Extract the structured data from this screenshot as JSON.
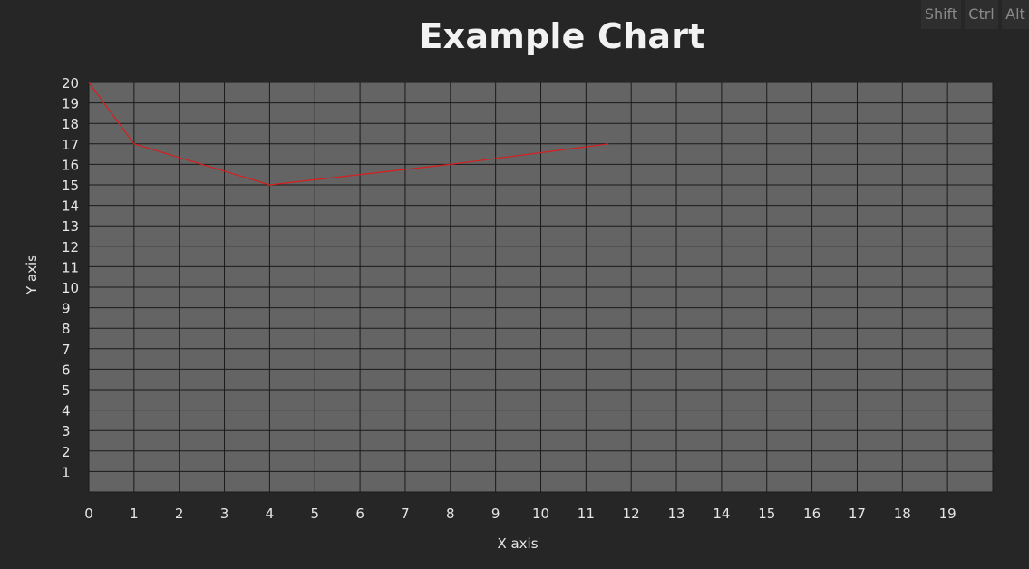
{
  "keys": {
    "shift": "Shift",
    "ctrl": "Ctrl",
    "alt": "Alt"
  },
  "colors": {
    "background": "#262626",
    "plot_background": "#646464",
    "grid": "#1a1a1a",
    "series": "#d81e1e"
  },
  "chart_data": {
    "type": "line",
    "title": "Example Chart",
    "xlabel": "X axis",
    "ylabel": "Y axis",
    "xlim": [
      0,
      20
    ],
    "ylim": [
      0,
      20
    ],
    "x_ticks": [
      0,
      1,
      2,
      3,
      4,
      5,
      6,
      7,
      8,
      9,
      10,
      11,
      12,
      13,
      14,
      15,
      16,
      17,
      18,
      19
    ],
    "y_ticks": [
      1,
      2,
      3,
      4,
      5,
      6,
      7,
      8,
      9,
      10,
      11,
      12,
      13,
      14,
      15,
      16,
      17,
      18,
      19,
      20
    ],
    "grid": true,
    "series": [
      {
        "x": [
          0,
          1,
          4,
          8,
          11.5
        ],
        "y": [
          20,
          17,
          15,
          16,
          17
        ],
        "color": "#d81e1e"
      }
    ]
  }
}
